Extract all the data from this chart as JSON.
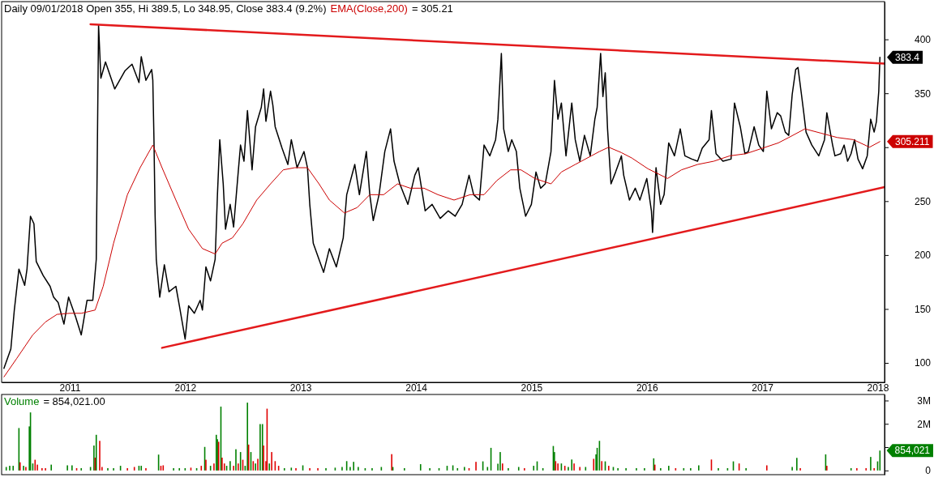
{
  "chart_data": [
    {
      "type": "line",
      "title": "Daily 09/01/2018 Open 355, Hi 389.5, Lo 348.95, Close 383.4 (9.2%)",
      "xlim": [
        2010.41,
        2018.06
      ],
      "xticks": [
        2011,
        2012,
        2013,
        2014,
        2015,
        2016,
        2017,
        2018
      ],
      "ylim": [
        82,
        435
      ],
      "yticks": [
        400,
        350,
        {
          "value": 300,
          "label": null
        },
        250,
        200,
        150,
        100
      ],
      "legend": "top left",
      "annotations": [
        "= 305.21",
        "383.4",
        "305.211"
      ],
      "series": [
        {
          "color": "#000000",
          "x": [
            2010.43,
            2010.49,
            2010.52,
            2010.56,
            2010.61,
            2010.63,
            2010.66,
            2010.69,
            2010.71,
            2010.77,
            2010.83,
            2010.86,
            2010.9,
            2010.95,
            2010.99,
            2011.05,
            2011.1,
            2011.15,
            2011.2,
            2011.23,
            2011.25,
            2011.27,
            2011.31,
            2011.39,
            2011.48,
            2011.54,
            2011.6,
            2011.62,
            2011.66,
            2011.71,
            2011.72,
            2011.73,
            2011.74,
            2011.75,
            2011.78,
            2011.82,
            2011.86,
            2011.92,
            2011.95,
            2012,
            2012.03,
            2012.08,
            2012.13,
            2012.15,
            2012.18,
            2012.22,
            2012.26,
            2012.28,
            2012.3,
            2012.33,
            2012.35,
            2012.39,
            2012.42,
            2012.46,
            2012.48,
            2012.51,
            2012.54,
            2012.58,
            2012.61,
            2012.66,
            2012.68,
            2012.7,
            2012.74,
            2012.76,
            2012.78,
            2012.84,
            2012.89,
            2012.92,
            2012.97,
            2013.03,
            2013.06,
            2013.08,
            2013.11,
            2013.16,
            2013.2,
            2013.25,
            2013.31,
            2013.37,
            2013.4,
            2013.47,
            2013.51,
            2013.57,
            2013.6,
            2013.63,
            2013.68,
            2013.73,
            2013.78,
            2013.81,
            2013.86,
            2013.93,
            2013.99,
            2014.02,
            2014.08,
            2014.14,
            2014.21,
            2014.28,
            2014.34,
            2014.4,
            2014.46,
            2014.5,
            2014.55,
            2014.59,
            2014.64,
            2014.69,
            2014.71,
            2014.74,
            2014.76,
            2014.8,
            2014.83,
            2014.87,
            2014.9,
            2014.95,
            2015,
            2015.04,
            2015.08,
            2015.12,
            2015.17,
            2015.2,
            2015.23,
            2015.26,
            2015.3,
            2015.35,
            2015.38,
            2015.42,
            2015.46,
            2015.51,
            2015.55,
            2015.57,
            2015.6,
            2015.62,
            2015.64,
            2015.66,
            2015.69,
            2015.73,
            2015.78,
            2015.8,
            2015.85,
            2015.9,
            2015.94,
            2016,
            2016.04,
            2016.05,
            2016.08,
            2016.12,
            2016.15,
            2016.19,
            2016.24,
            2016.29,
            2016.33,
            2016.39,
            2016.44,
            2016.48,
            2016.54,
            2016.56,
            2016.6,
            2016.66,
            2016.73,
            2016.76,
            2016.81,
            2016.85,
            2016.88,
            2016.93,
            2016.97,
            2017.01,
            2017.04,
            2017.08,
            2017.13,
            2017.16,
            2017.2,
            2017.23,
            2017.26,
            2017.29,
            2017.31,
            2017.34,
            2017.36,
            2017.38,
            2017.43,
            2017.49,
            2017.54,
            2017.56,
            2017.61,
            2017.63,
            2017.68,
            2017.71,
            2017.74,
            2017.77,
            2017.8,
            2017.83,
            2017.87,
            2017.91,
            2017.94,
            2017.97,
            2017.99,
            2018.01,
            2018.02
          ],
          "values": [
            95,
            113,
            149,
            187,
            172,
            187,
            236,
            229,
            194,
            181,
            171,
            161,
            156,
            136,
            161,
            143,
            126,
            158,
            158,
            196,
            413,
            364,
            379,
            354,
            371,
            377,
            360,
            384,
            362,
            372,
            362,
            307,
            236,
            196,
            161,
            191,
            166,
            171,
            153,
            122,
            153,
            146,
            158,
            149,
            189,
            176,
            196,
            256,
            307,
            266,
            224,
            247,
            226,
            277,
            302,
            287,
            334,
            279,
            319,
            337,
            354,
            324,
            352,
            339,
            319,
            299,
            284,
            307,
            281,
            296,
            281,
            247,
            211,
            196,
            184,
            206,
            189,
            216,
            256,
            284,
            256,
            296,
            256,
            232,
            256,
            296,
            317,
            287,
            266,
            247,
            274,
            281,
            241,
            247,
            234,
            241,
            236,
            247,
            274,
            256,
            251,
            302,
            292,
            307,
            326,
            387,
            317,
            296,
            307,
            296,
            262,
            236,
            247,
            277,
            262,
            266,
            296,
            362,
            326,
            341,
            292,
            341,
            307,
            287,
            311,
            292,
            326,
            337,
            387,
            347,
            369,
            317,
            266,
            277,
            292,
            274,
            251,
            262,
            251,
            271,
            241,
            221,
            281,
            247,
            256,
            304,
            292,
            317,
            292,
            289,
            287,
            299,
            307,
            334,
            294,
            287,
            289,
            341,
            319,
            294,
            296,
            319,
            302,
            296,
            352,
            317,
            332,
            329,
            314,
            311,
            349,
            372,
            374,
            349,
            332,
            314,
            302,
            292,
            307,
            332,
            302,
            292,
            294,
            302,
            287,
            294,
            307,
            289,
            280,
            292,
            326,
            314,
            324,
            352,
            383.4
          ]
        },
        {
          "name": "EMA(Close,200)",
          "color": "#cc0000",
          "x": [
            2010.43,
            2010.54,
            2010.68,
            2010.79,
            2010.89,
            2011,
            2011.1,
            2011.22,
            2011.29,
            2011.38,
            2011.5,
            2011.61,
            2011.72,
            2011.8,
            2011.92,
            2012.03,
            2012.15,
            2012.26,
            2012.32,
            2012.41,
            2012.5,
            2012.62,
            2012.74,
            2012.85,
            2012.95,
            2013.06,
            2013.16,
            2013.25,
            2013.38,
            2013.49,
            2013.6,
            2013.72,
            2013.84,
            2013.95,
            2014.07,
            2014.19,
            2014.33,
            2014.47,
            2014.59,
            2014.7,
            2014.82,
            2014.91,
            2015.03,
            2015.17,
            2015.26,
            2015.38,
            2015.52,
            2015.59,
            2015.67,
            2015.78,
            2015.87,
            2016.01,
            2016.18,
            2016.3,
            2016.44,
            2016.58,
            2016.72,
            2016.86,
            2017,
            2017.14,
            2017.23,
            2017.37,
            2017.51,
            2017.65,
            2017.79,
            2017.93,
            2018.02
          ],
          "values": [
            87,
            104,
            126,
            138,
            145,
            146,
            146,
            149,
            171,
            211,
            256,
            281,
            302,
            281,
            251,
            224,
            206,
            201,
            211,
            216,
            229,
            251,
            266,
            279,
            281,
            281,
            266,
            251,
            239,
            244,
            256,
            256,
            266,
            262,
            262,
            256,
            251,
            256,
            256,
            269,
            279,
            279,
            271,
            266,
            277,
            284,
            292,
            296,
            300,
            295,
            290,
            280,
            271,
            279,
            284,
            287,
            292,
            294,
            299,
            304,
            309,
            317,
            313,
            309,
            307,
            300,
            305.21
          ]
        },
        {
          "color": "#e31a1c",
          "x": [
            2011.18,
            2018.06
          ],
          "values": [
            414,
            377.5
          ]
        },
        {
          "color": "#e31a1c",
          "x": [
            2011.8,
            2018.06
          ],
          "values": [
            114,
            263
          ]
        }
      ]
    },
    {
      "type": "bar",
      "xlim": [
        2010.41,
        2018.06
      ],
      "ylim": [
        -0.18,
        3.26
      ],
      "yticks": [
        {
          "value": 3,
          "label": "3M"
        },
        {
          "value": 2,
          "label": "2M"
        },
        {
          "value": 1,
          "label": null
        },
        0
      ],
      "tick_labels": "y",
      "legend": "top left",
      "annotations": [
        "= 854,021.00",
        "854,021"
      ],
      "series": [
        {
          "name": "Volume",
          "color": "#008000",
          "x": [
            2010.45,
            2010.48,
            2010.51,
            2010.56,
            2010.57,
            2010.6,
            2010.62,
            2010.65,
            2010.66,
            2010.68,
            2010.7,
            2010.72,
            2010.76,
            2010.79,
            2010.84,
            2010.98,
            2011.02,
            2011.06,
            2011.1,
            2011.18,
            2011.21,
            2011.22,
            2011.23,
            2011.26,
            2011.28,
            2011.33,
            2011.38,
            2011.44,
            2011.5,
            2011.56,
            2011.6,
            2011.62,
            2011.66,
            2011.77,
            2011.79,
            2011.81,
            2011.9,
            2011.95,
            2012,
            2012.05,
            2012.1,
            2012.14,
            2012.17,
            2012.18,
            2012.22,
            2012.25,
            2012.27,
            2012.28,
            2012.29,
            2012.31,
            2012.32,
            2012.34,
            2012.36,
            2012.39,
            2012.42,
            2012.44,
            2012.46,
            2012.48,
            2012.5,
            2012.52,
            2012.54,
            2012.55,
            2012.57,
            2012.59,
            2012.61,
            2012.63,
            2012.65,
            2012.67,
            2012.68,
            2012.7,
            2012.71,
            2012.73,
            2012.75,
            2012.78,
            2012.81,
            2012.86,
            2012.92,
            2012.96,
            2013.02,
            2013.08,
            2013.15,
            2013.22,
            2013.3,
            2013.36,
            2013.4,
            2013.43,
            2013.46,
            2013.5,
            2013.56,
            2013.62,
            2013.7,
            2013.79,
            2013.8,
            2013.9,
            2014.04,
            2014.12,
            2014.2,
            2014.27,
            2014.32,
            2014.36,
            2014.42,
            2014.46,
            2014.52,
            2014.58,
            2014.62,
            2014.65,
            2014.71,
            2014.73,
            2014.75,
            2014.8,
            2014.89,
            2014.94,
            2015.02,
            2015.05,
            2015.1,
            2015.19,
            2015.2,
            2015.21,
            2015.23,
            2015.26,
            2015.29,
            2015.32,
            2015.35,
            2015.37,
            2015.42,
            2015.47,
            2015.54,
            2015.56,
            2015.57,
            2015.59,
            2015.61,
            2015.64,
            2015.67,
            2015.71,
            2015.75,
            2015.82,
            2015.91,
            2015.98,
            2016.06,
            2016.07,
            2016.12,
            2016.19,
            2016.25,
            2016.32,
            2016.38,
            2016.45,
            2016.56,
            2016.62,
            2016.7,
            2016.75,
            2016.8,
            2016.86,
            2017.04,
            2017.26,
            2017.3,
            2017.33,
            2017.55,
            2017.56,
            2017.77,
            2017.82,
            2017.9,
            2017.94,
            2017.97,
            2018,
            2018.02
          ],
          "values": [
            0.15,
            0.2,
            0.2,
            1.82,
            0.35,
            0.2,
            0.15,
            1.89,
            2.49,
            0.3,
            0.46,
            0.25,
            0.1,
            0.1,
            0.25,
            0.22,
            0.22,
            0.1,
            0.1,
            0.15,
            1.07,
            0.55,
            1.53,
            1.27,
            0.15,
            0.1,
            0.1,
            0.2,
            0.1,
            0.15,
            0.2,
            0.2,
            0.1,
            0.68,
            0.2,
            0.22,
            0.1,
            0.1,
            0.1,
            0.12,
            0.1,
            0.2,
            1.01,
            0.46,
            0.2,
            0.3,
            1.53,
            1.34,
            1.23,
            2.74,
            0.55,
            0.3,
            0.2,
            0.4,
            0.2,
            0.91,
            0.3,
            0.79,
            0.46,
            0.2,
            2.91,
            1.11,
            0.79,
            0.4,
            0.3,
            0.5,
            1.99,
            1.99,
            1.07,
            0.4,
            2.65,
            0.3,
            0.79,
            0.4,
            0.2,
            0.1,
            0.12,
            0.1,
            0.22,
            0.1,
            0.1,
            0.1,
            0.12,
            0.15,
            0.4,
            0.15,
            0.37,
            0.15,
            0.1,
            0.1,
            0.15,
            0.7,
            0.15,
            0.1,
            0.27,
            0.1,
            0.1,
            0.2,
            0.22,
            0.1,
            0.15,
            0.1,
            0.37,
            0.39,
            0.15,
            0.97,
            0.29,
            0.79,
            0.3,
            0.1,
            0.15,
            0.1,
            0.2,
            0.39,
            0.1,
            1.05,
            0.79,
            0.4,
            0.3,
            0.3,
            0.2,
            0.15,
            0.47,
            0.3,
            0.15,
            0.15,
            0.5,
            0.69,
            0.97,
            1.27,
            0.4,
            0.39,
            0.2,
            0.15,
            0.1,
            0.1,
            0.1,
            0.1,
            0.52,
            0.25,
            0.1,
            0.2,
            0.1,
            0.1,
            0.1,
            0.22,
            0.47,
            0.1,
            0.1,
            0.39,
            0.3,
            0.1,
            0.22,
            0.15,
            0.54,
            0.1,
            0.69,
            0.2,
            0.1,
            0.1,
            0.1,
            0.58,
            0.1,
            0.39,
            0.854
          ],
          "colors": [
            "#008000",
            "#008000",
            "#008000",
            "#008000",
            "#e00000",
            "#008000",
            "#e00000",
            "#008000",
            "#008000",
            "#008000",
            "#e00000",
            "#e00000",
            "#e00000",
            "#e00000",
            "#008000",
            "#008000",
            "#008000",
            "#e00000",
            "#008000",
            "#008000",
            "#008000",
            "#e00000",
            "#008000",
            "#e00000",
            "#e00000",
            "#008000",
            "#008000",
            "#008000",
            "#e00000",
            "#e00000",
            "#008000",
            "#008000",
            "#e00000",
            "#008000",
            "#e00000",
            "#e00000",
            "#008000",
            "#008000",
            "#008000",
            "#e00000",
            "#008000",
            "#e00000",
            "#008000",
            "#e00000",
            "#008000",
            "#e00000",
            "#008000",
            "#008000",
            "#e00000",
            "#008000",
            "#e00000",
            "#e00000",
            "#008000",
            "#008000",
            "#e00000",
            "#008000",
            "#e00000",
            "#008000",
            "#e00000",
            "#008000",
            "#008000",
            "#e00000",
            "#008000",
            "#e00000",
            "#008000",
            "#e00000",
            "#008000",
            "#008000",
            "#e00000",
            "#e00000",
            "#e00000",
            "#008000",
            "#e00000",
            "#e00000",
            "#e00000",
            "#008000",
            "#008000",
            "#e00000",
            "#008000",
            "#e00000",
            "#e00000",
            "#008000",
            "#008000",
            "#008000",
            "#008000",
            "#008000",
            "#008000",
            "#008000",
            "#008000",
            "#008000",
            "#008000",
            "#e00000",
            "#008000",
            "#008000",
            "#008000",
            "#008000",
            "#008000",
            "#008000",
            "#008000",
            "#008000",
            "#008000",
            "#e00000",
            "#e00000",
            "#008000",
            "#008000",
            "#008000",
            "#008000",
            "#008000",
            "#e00000",
            "#008000",
            "#008000",
            "#e00000",
            "#008000",
            "#008000",
            "#008000",
            "#008000",
            "#008000",
            "#e00000",
            "#e00000",
            "#008000",
            "#e00000",
            "#008000",
            "#008000",
            "#e00000",
            "#e00000",
            "#008000",
            "#e00000",
            "#008000",
            "#008000",
            "#008000",
            "#e00000",
            "#008000",
            "#e00000",
            "#008000",
            "#008000",
            "#008000",
            "#008000",
            "#008000",
            "#008000",
            "#e00000",
            "#008000",
            "#008000",
            "#e00000",
            "#008000",
            "#008000",
            "#008000",
            "#e00000",
            "#008000",
            "#008000",
            "#008000",
            "#e00000",
            "#008000",
            "#e00000",
            "#008000",
            "#008000",
            "#e00000",
            "#008000",
            "#e00000",
            "#008000",
            "#e00000",
            "#e00000",
            "#008000",
            "#e00000",
            "#008000",
            "#008000"
          ]
        }
      ]
    }
  ]
}
